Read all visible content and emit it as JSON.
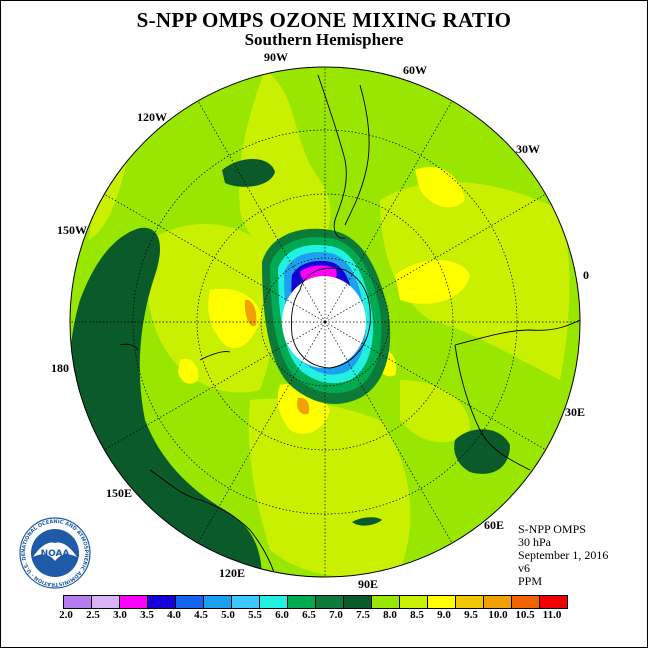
{
  "title": "S-NPP OMPS OZONE MIXING RATIO",
  "subtitle": "Southern Hemisphere",
  "longitude_labels": [
    "90W",
    "60W",
    "30W",
    "0",
    "30E",
    "60E",
    "90E",
    "120E",
    "150E",
    "180",
    "150W",
    "120W"
  ],
  "info": {
    "instrument": "S-NPP OMPS",
    "level": "30 hPa",
    "date": "September 1, 2016",
    "version": "v6",
    "units": "PPM"
  },
  "colorbar": {
    "ticks": [
      "2.0",
      "2.5",
      "3.0",
      "3.5",
      "4.0",
      "4.5",
      "5.0",
      "5.5",
      "6.0",
      "6.5",
      "7.0",
      "7.5",
      "8.0",
      "8.5",
      "9.0",
      "9.5",
      "10.0",
      "10.5",
      "11.0"
    ],
    "colors": [
      "#b57cf0",
      "#d8b4f4",
      "#ff00ff",
      "#1400d8",
      "#1464f0",
      "#1ea0f0",
      "#3cc8ff",
      "#22f0e0",
      "#00aa50",
      "#0d7a3a",
      "#0a5a2a",
      "#99e600",
      "#c8f000",
      "#ffff00",
      "#f0c800",
      "#f0a000",
      "#f06400",
      "#f00000",
      "#8c5030"
    ]
  },
  "logo": {
    "text": "NOAA",
    "ring_text": "NATIONAL OCEANIC AND ATMOSPHERIC ADMINISTRATION · U.S. DEPARTMENT OF COMMERCE"
  },
  "map_colors": {
    "background": "#99e600",
    "dark_band": "#0a5a2a",
    "yellow_green": "#c8f000",
    "yellow": "#ffff00",
    "orange": "#f0a000",
    "vortex_outer": "#0d7a3a",
    "vortex_mid": "#00aa50",
    "vortex_cyan": "#22f0e0",
    "vortex_blue": "#1ea0f0",
    "vortex_dark": "#1400d8",
    "vortex_magenta": "#ff00ff"
  }
}
